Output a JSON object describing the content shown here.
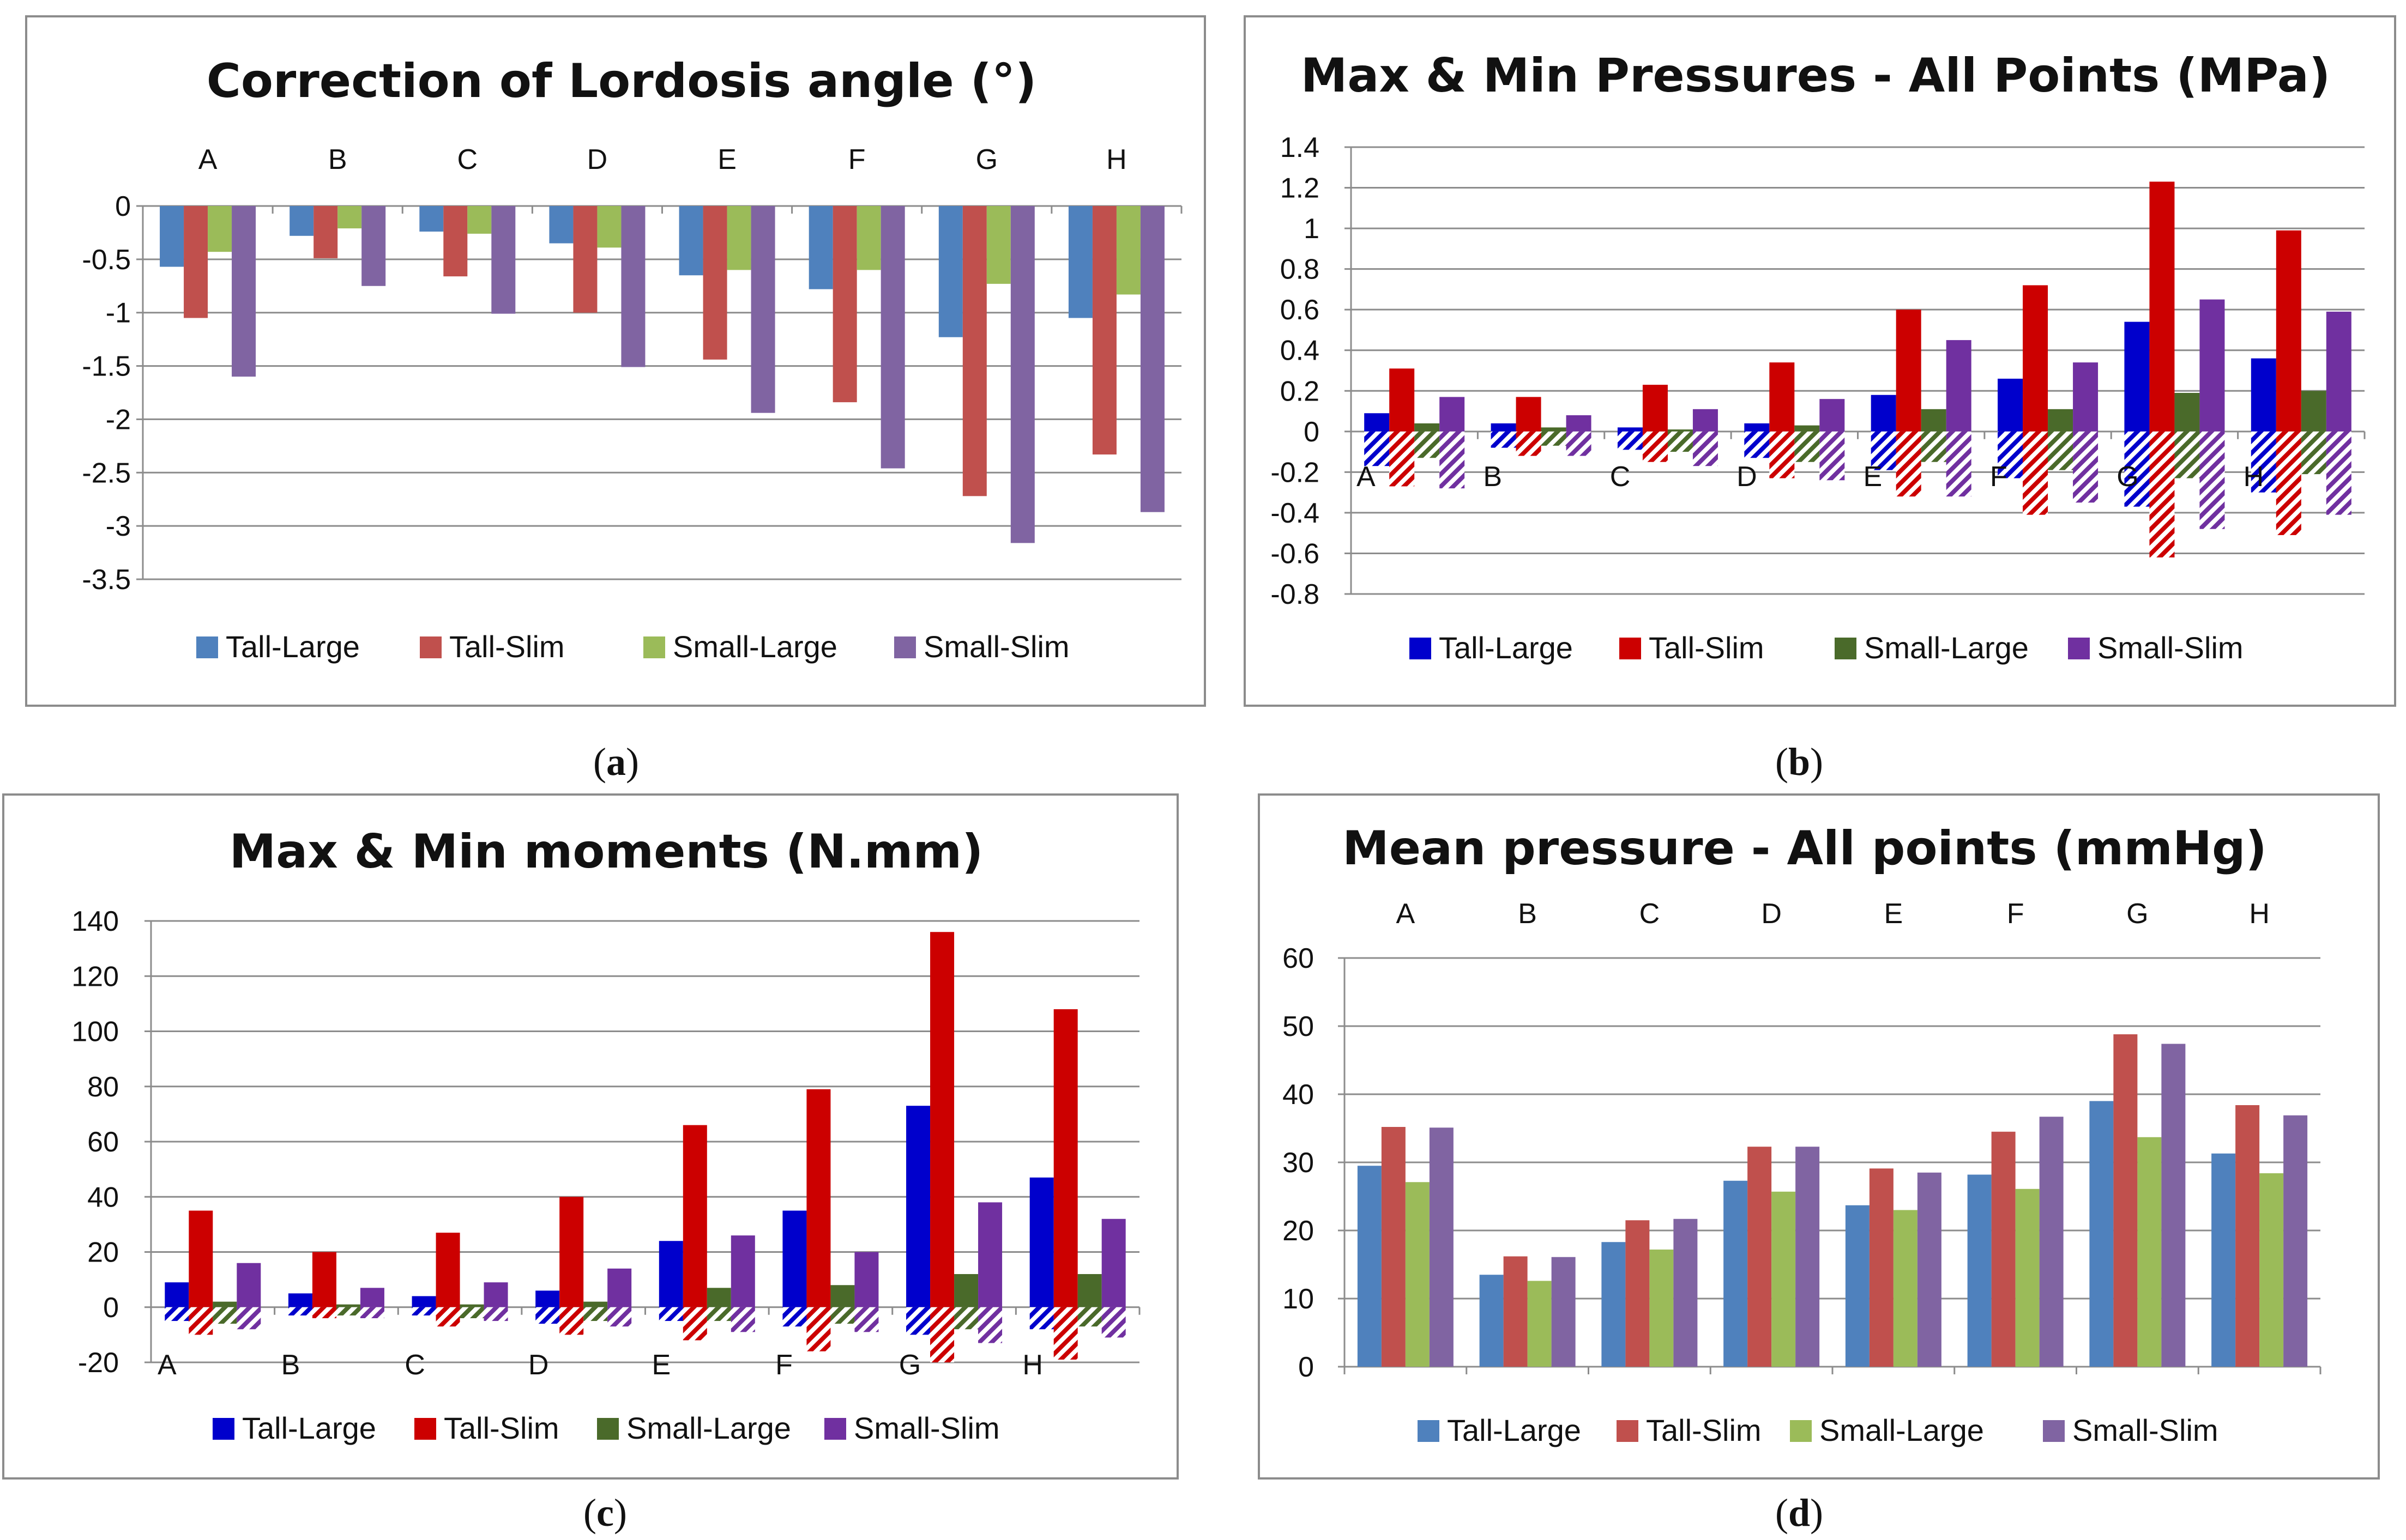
{
  "chart_data": [
    {
      "id": "a",
      "type": "bar",
      "title": "Correction of Lordosis angle (°)",
      "caption_letter": "a",
      "categories": [
        "A",
        "B",
        "C",
        "D",
        "E",
        "F",
        "G",
        "H"
      ],
      "category_position": "top",
      "ylim": [
        -3.5,
        0
      ],
      "yticks": [
        "0",
        "-0.5",
        "-1",
        "-1.5",
        "-2",
        "-2.5",
        "-3",
        "-3.5"
      ],
      "ytick_values": [
        0,
        -0.5,
        -1,
        -1.5,
        -2,
        -2.5,
        -3,
        -3.5
      ],
      "grid": true,
      "series": [
        {
          "name": "Tall-Large",
          "color": "#4F81BD",
          "values": [
            -0.57,
            -0.28,
            -0.24,
            -0.35,
            -0.65,
            -0.78,
            -1.23,
            -1.05
          ]
        },
        {
          "name": "Tall-Slim",
          "color": "#C0504D",
          "values": [
            -1.05,
            -0.49,
            -0.66,
            -1.0,
            -1.44,
            -1.84,
            -2.72,
            -2.33
          ]
        },
        {
          "name": "Small-Large",
          "color": "#9BBB59",
          "values": [
            -0.43,
            -0.21,
            -0.26,
            -0.39,
            -0.6,
            -0.6,
            -0.73,
            -0.83
          ]
        },
        {
          "name": "Small-Slim",
          "color": "#8064A2",
          "values": [
            -1.6,
            -0.75,
            -1.01,
            -1.51,
            -1.94,
            -2.46,
            -3.16,
            -2.87
          ]
        }
      ]
    },
    {
      "id": "b",
      "type": "bar",
      "title": "Max & Min Pressures - All Points (MPa)",
      "caption_letter": "b",
      "categories": [
        "A",
        "B",
        "C",
        "D",
        "E",
        "F",
        "G",
        "H"
      ],
      "category_position": "axis",
      "ylim": [
        -0.8,
        1.4
      ],
      "yticks": [
        "1.4",
        "1.2",
        "1",
        "0.8",
        "0.6",
        "0.4",
        "0.2",
        "0",
        "-0.2",
        "-0.4",
        "-0.6",
        "-0.8"
      ],
      "ytick_values": [
        1.4,
        1.2,
        1,
        0.8,
        0.6,
        0.4,
        0.2,
        0,
        -0.2,
        -0.4,
        -0.6,
        -0.8
      ],
      "grid": true,
      "series": [
        {
          "name": "Tall-Large",
          "color": "#0000CC",
          "max": [
            0.09,
            0.04,
            0.02,
            0.04,
            0.18,
            0.26,
            0.54,
            0.36
          ],
          "min": [
            -0.17,
            -0.08,
            -0.09,
            -0.13,
            -0.19,
            -0.23,
            -0.37,
            -0.3
          ]
        },
        {
          "name": "Tall-Slim",
          "color": "#CC0000",
          "max": [
            0.31,
            0.17,
            0.23,
            0.34,
            0.6,
            0.72,
            1.23,
            0.99
          ],
          "min": [
            -0.27,
            -0.12,
            -0.15,
            -0.23,
            -0.32,
            -0.41,
            -0.62,
            -0.51
          ]
        },
        {
          "name": "Small-Large",
          "color": "#4A6A2A",
          "max": [
            0.04,
            0.02,
            0.01,
            0.03,
            0.11,
            0.11,
            0.19,
            0.2
          ],
          "min": [
            -0.13,
            -0.07,
            -0.1,
            -0.15,
            -0.15,
            -0.19,
            -0.23,
            -0.21
          ]
        },
        {
          "name": "Small-Slim",
          "color": "#7030A0",
          "max": [
            0.17,
            0.08,
            0.11,
            0.16,
            0.45,
            0.34,
            0.65,
            0.59
          ],
          "min": [
            -0.28,
            -0.12,
            -0.17,
            -0.24,
            -0.32,
            -0.35,
            -0.48,
            -0.41
          ]
        }
      ]
    },
    {
      "id": "c",
      "type": "bar",
      "title": "Max & Min moments (N.mm)",
      "caption_letter": "c",
      "categories": [
        "A",
        "B",
        "C",
        "D",
        "E",
        "F",
        "G",
        "H"
      ],
      "category_position": "bottom",
      "ylim": [
        -20,
        140
      ],
      "yticks": [
        "140",
        "120",
        "100",
        "80",
        "60",
        "40",
        "20",
        "0",
        "-20"
      ],
      "ytick_values": [
        140,
        120,
        100,
        80,
        60,
        40,
        20,
        0,
        -20
      ],
      "grid": true,
      "series": [
        {
          "name": "Tall-Large",
          "color": "#0000CC",
          "max": [
            9,
            5,
            4,
            6,
            24,
            35,
            73,
            47
          ],
          "min": [
            -5,
            -3,
            -3,
            -6,
            -5,
            -7,
            -10,
            -8
          ]
        },
        {
          "name": "Tall-Slim",
          "color": "#CC0000",
          "max": [
            35,
            20,
            27,
            40,
            66,
            79,
            136,
            108
          ],
          "min": [
            -10,
            -4,
            -7,
            -10,
            -12,
            -16,
            -20,
            -19
          ]
        },
        {
          "name": "Small-Large",
          "color": "#4A6A2A",
          "max": [
            2,
            1,
            1,
            2,
            7,
            8,
            12,
            12
          ],
          "min": [
            -6,
            -3,
            -4,
            -5,
            -5,
            -6,
            -8,
            -7
          ]
        },
        {
          "name": "Small-Slim",
          "color": "#7030A0",
          "max": [
            16,
            7,
            9,
            14,
            26,
            20,
            38,
            32
          ],
          "min": [
            -8,
            -4,
            -5,
            -7,
            -9,
            -9,
            -13,
            -11
          ]
        }
      ]
    },
    {
      "id": "d",
      "type": "bar",
      "title": "Mean pressure - All points (mmHg)",
      "caption_letter": "d",
      "categories": [
        "A",
        "B",
        "C",
        "D",
        "E",
        "F",
        "G",
        "H"
      ],
      "category_position": "top",
      "ylim": [
        0,
        60
      ],
      "yticks": [
        "60",
        "50",
        "40",
        "30",
        "20",
        "10",
        "0"
      ],
      "ytick_values": [
        60,
        50,
        40,
        30,
        20,
        10,
        0
      ],
      "grid": true,
      "series": [
        {
          "name": "Tall-Large",
          "color": "#4F81BD",
          "values": [
            29.5,
            13.5,
            18.3,
            27.3,
            23.7,
            28.2,
            39.0,
            31.3
          ]
        },
        {
          "name": "Tall-Slim",
          "color": "#C0504D",
          "values": [
            35.2,
            16.2,
            21.5,
            32.3,
            29.1,
            34.5,
            48.8,
            38.4
          ]
        },
        {
          "name": "Small-Large",
          "color": "#9BBB59",
          "values": [
            27.1,
            12.6,
            17.2,
            25.7,
            23.0,
            26.1,
            33.7,
            28.4
          ]
        },
        {
          "name": "Small-Slim",
          "color": "#8064A2",
          "values": [
            35.1,
            16.1,
            21.7,
            32.3,
            28.5,
            36.7,
            47.4,
            36.9
          ]
        }
      ]
    }
  ]
}
